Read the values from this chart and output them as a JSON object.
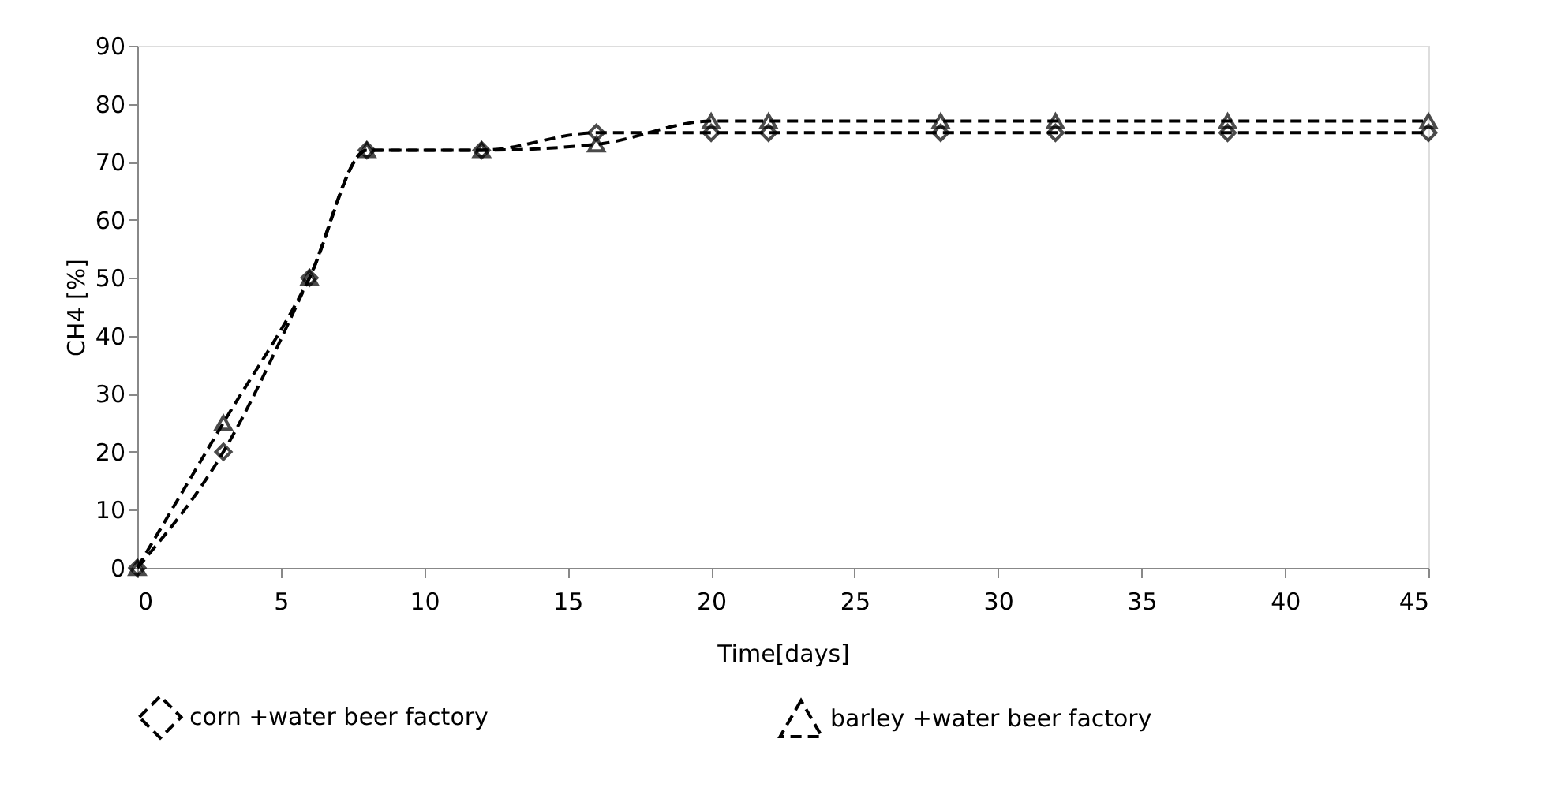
{
  "chart_data": {
    "type": "line",
    "xlabel": "Time[days]",
    "ylabel": "CH4 [%]",
    "x": [
      0,
      3,
      6,
      8,
      12,
      16,
      20,
      22,
      28,
      32,
      38,
      45
    ],
    "series": [
      {
        "name": "corn +water beer factory",
        "color": "#000000",
        "marker": "diamond",
        "line_style": "dashed",
        "values": [
          0,
          20,
          50,
          72,
          72,
          75,
          75,
          75,
          75,
          75,
          75,
          75
        ]
      },
      {
        "name": "barley +water beer factory",
        "color": "#000000",
        "marker": "triangle",
        "line_style": "dashed",
        "values": [
          0,
          25,
          50,
          72,
          72,
          73,
          77,
          77,
          77,
          77,
          77,
          77
        ]
      }
    ],
    "xlim": [
      0,
      45
    ],
    "xticks": [
      0,
      5,
      10,
      15,
      20,
      25,
      30,
      35,
      40,
      45
    ],
    "ylim": [
      0,
      90
    ],
    "yticks": [
      0,
      10,
      20,
      30,
      40,
      50,
      60,
      70,
      80,
      90
    ],
    "grid": false,
    "legend": "bottom"
  }
}
